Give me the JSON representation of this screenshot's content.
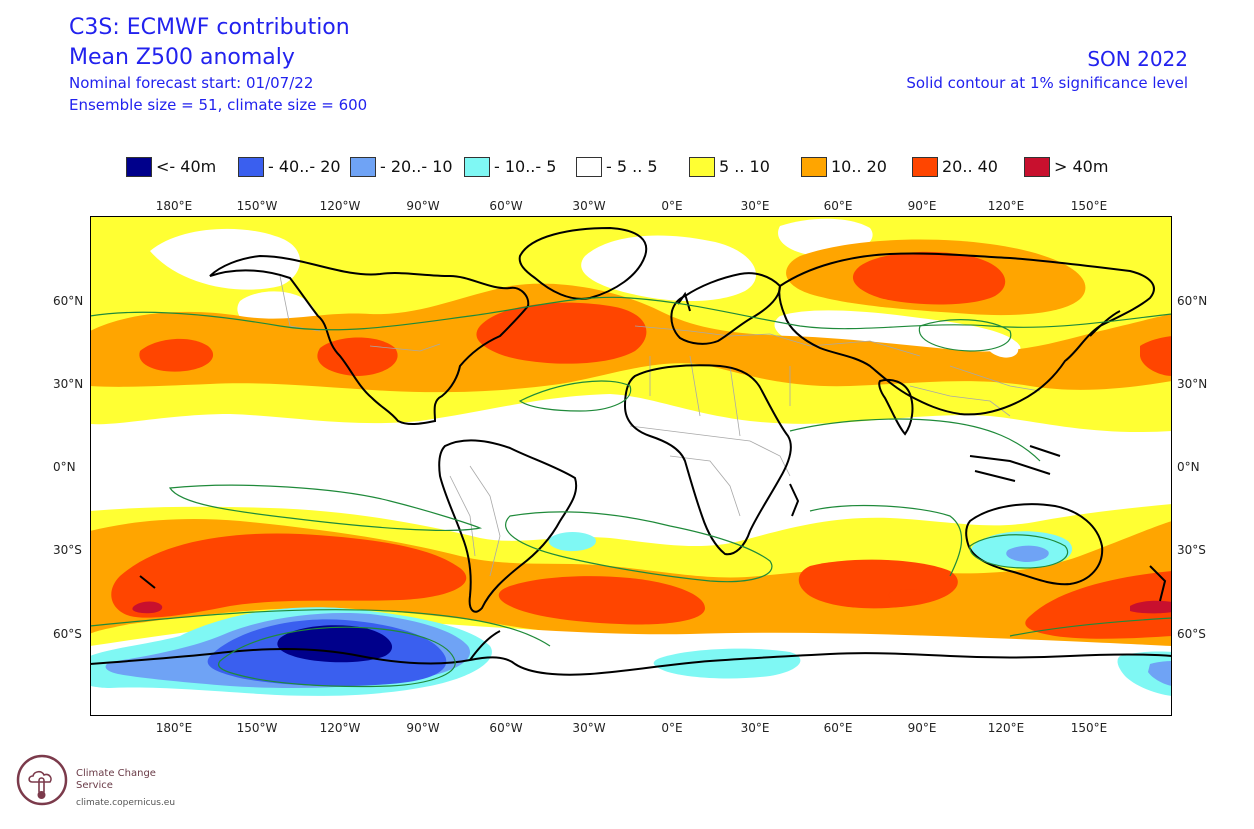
{
  "header": {
    "title_line1": "C3S: ECMWF contribution",
    "title_line2": "Mean Z500 anomaly",
    "forecast_start": "Nominal forecast start: 01/07/22",
    "ensemble_info": "Ensemble size = 51, climate size = 600",
    "season": "SON 2022",
    "significance_note": "Solid contour at 1% significance level"
  },
  "legend": [
    {
      "label": "<- 40m",
      "color": "#00008b"
    },
    {
      "label": "- 40..- 20",
      "color": "#3a5fef"
    },
    {
      "label": "- 20..- 10",
      "color": "#6fa3f5"
    },
    {
      "label": "- 10..- 5",
      "color": "#7ff8f4"
    },
    {
      "label": "- 5 .. 5",
      "color": "#ffffff"
    },
    {
      "label": "5 .. 10",
      "color": "#ffff33"
    },
    {
      "label": "10.. 20",
      "color": "#ffa500"
    },
    {
      "label": "20.. 40",
      "color": "#ff4500"
    },
    {
      "label": "> 40m",
      "color": "#c8102e"
    }
  ],
  "axes": {
    "lon_ticks": [
      "180°E",
      "150°W",
      "120°W",
      "90°W",
      "60°W",
      "30°W",
      "0°E",
      "30°E",
      "60°E",
      "90°E",
      "120°E",
      "150°E"
    ],
    "lat_ticks": [
      "60°N",
      "30°N",
      "0°N",
      "30°S",
      "60°S"
    ]
  },
  "colors": {
    "coastline": "#000000",
    "borders": "#a8a8a8",
    "significance_contour": "#1f8a3a"
  },
  "logo": {
    "name": "Climate Change Service",
    "url": "climate.copernicus.eu",
    "icon": "thermometer-cloud-icon",
    "color": "#7b3a4b"
  }
}
